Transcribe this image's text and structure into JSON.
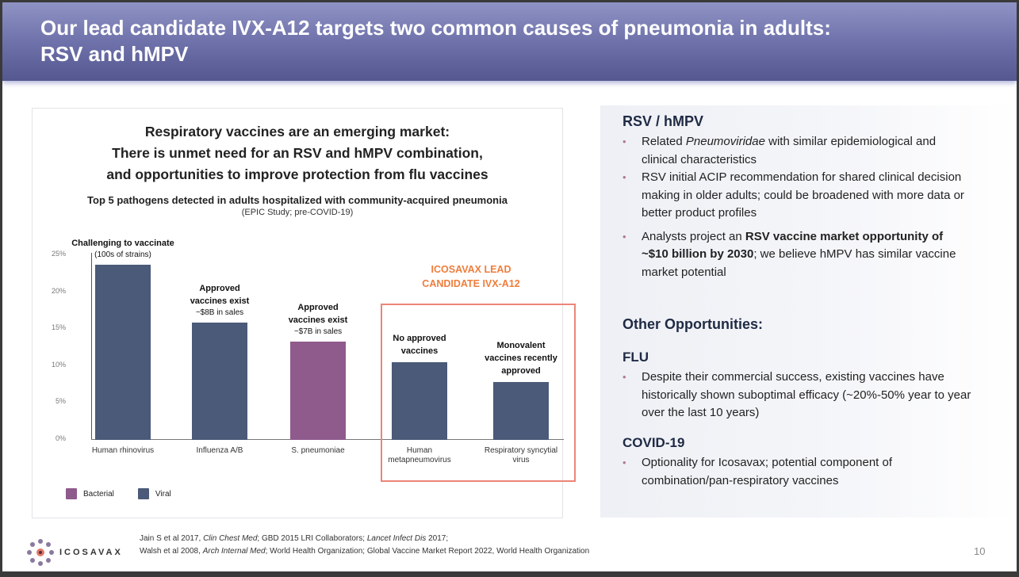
{
  "slide": {
    "title_line1": "Our lead candidate IVX-A12 targets two common causes of pneumonia in adults:",
    "title_line2": "RSV and hMPV",
    "page_number": "10"
  },
  "chart_card": {
    "headline_line1": "Respiratory vaccines are an emerging market:",
    "headline_line2": "There is unmet need for an RSV and hMPV combination,",
    "headline_line3": "and opportunities to improve protection from flu vaccines",
    "lead_label_line1": "ICOSAVAX LEAD",
    "lead_label_line2": "CANDIDATE IVX-A12"
  },
  "chart_data": {
    "type": "bar",
    "title": "Top 5 pathogens detected in adults hospitalized with community-acquired pneumonia",
    "subtitle": "(EPIC Study; pre-COVID-19)",
    "xlabel": "",
    "ylabel": "",
    "ylim": [
      0,
      25
    ],
    "yticks": [
      "0%",
      "5%",
      "10%",
      "15%",
      "20%",
      "25%"
    ],
    "grid": false,
    "legend_position": "bottom-left",
    "categories": [
      "Human rhinovirus",
      "Influenza A/B",
      "S. pneumoniae",
      "Human metapneumovirus",
      "Respiratory syncytial virus"
    ],
    "xtick_labels": [
      {
        "line1": "Human rhinovirus",
        "line2": ""
      },
      {
        "line1": "Influenza A/B",
        "line2": ""
      },
      {
        "line1": "S. pneumoniae",
        "line2": ""
      },
      {
        "line1": "Human",
        "line2": "metapneumovirus"
      },
      {
        "line1": "Respiratory syncytial",
        "line2": "virus"
      }
    ],
    "values": [
      23.7,
      15.9,
      13.3,
      10.5,
      7.8
    ],
    "value_unit": "%",
    "bar_types": [
      "Viral",
      "Viral",
      "Bacterial",
      "Viral",
      "Viral"
    ],
    "colors": {
      "Viral": "#4a5a78",
      "Bacterial": "#8f5a8c"
    },
    "legend": [
      {
        "label": "Bacterial",
        "color": "#8f5a8c"
      },
      {
        "label": "Viral",
        "color": "#4a5a78"
      }
    ],
    "annotations": [
      {
        "bold": "Challenging to vaccinate",
        "bold2": "",
        "note": "(100s of strains)"
      },
      {
        "bold": "Approved",
        "bold2": "vaccines exist",
        "note": "~$8B in sales"
      },
      {
        "bold": "Approved",
        "bold2": "vaccines exist",
        "note": "~$7B in sales"
      },
      {
        "bold": "No approved",
        "bold2": "vaccines",
        "note": ""
      },
      {
        "bold": "Monovalent",
        "bold2": "vaccines recently",
        "note": "approved"
      }
    ],
    "highlight_box": {
      "label": "ICOSAVAX LEAD CANDIDATE IVX-A12",
      "categories": [
        "Human metapneumovirus",
        "Respiratory syncytial virus"
      ],
      "color": "#ec8578"
    }
  },
  "right_panel": {
    "rsv_heading": "RSV / hMPV",
    "rsv_bullets": [
      {
        "pre": "Related ",
        "italic": "Pneumoviridae",
        "post": " with similar epidemiological and clinical characteristics"
      },
      {
        "text": "RSV initial ACIP recommendation for shared clinical decision making in older adults; could be broadened with more data or better product profiles"
      },
      {
        "pre": "Analysts project an ",
        "bold": "RSV vaccine market opportunity of ~$10 billion by 2030",
        "post": "; we believe hMPV has similar vaccine market potential"
      }
    ],
    "other_heading": "Other Opportunities:",
    "flu_heading": "FLU",
    "flu_bullets": [
      "Despite their commercial success, existing vaccines have historically shown suboptimal efficacy (~20%-50% year to year over the last 10 years)"
    ],
    "covid_heading": "COVID-19",
    "covid_bullets": [
      "Optionality for Icosavax; potential component of combination/pan-respiratory vaccines"
    ]
  },
  "footer": {
    "logo_text": "ICOSAVAX",
    "ref_line1": [
      {
        "t": "Jain S et al 2017, "
      },
      {
        "t": "Clin Chest Med",
        "i": true
      },
      {
        "t": "; GBD 2015 LRI Collaborators; "
      },
      {
        "t": "Lancet Infect Dis",
        "i": true
      },
      {
        "t": " 2017;"
      }
    ],
    "ref_line2": [
      {
        "t": "Walsh et al 2008, "
      },
      {
        "t": "Arch Internal Med",
        "i": true
      },
      {
        "t": "; World Health Organization; Global Vaccine Market Report 2022, World Health Organization"
      }
    ]
  }
}
